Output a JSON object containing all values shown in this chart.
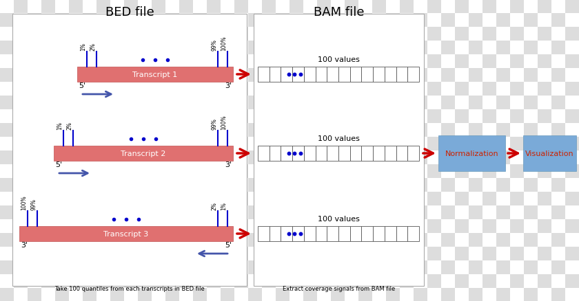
{
  "title_bed": "BED file",
  "title_bam": "BAM file",
  "caption_bed": "Take 100 quantiles from each transcripts in BED file",
  "caption_bam": "Extract coverage signals from BAM file",
  "transcript_color": "#E07070",
  "marker_color": "#0000CC",
  "arrow_red": "#CC0000",
  "arrow_blue": "#4455AA",
  "box_blue": "#7AAAD8",
  "box_text_red": "#CC2200",
  "panel_edge": "#AAAAAA",
  "checker_light": "#DDDDDD",
  "checker_dark": "#BBBBBB",
  "checker_white": "#FFFFFF",
  "fig_w": 8.4,
  "fig_h": 4.39,
  "dpi": 100
}
